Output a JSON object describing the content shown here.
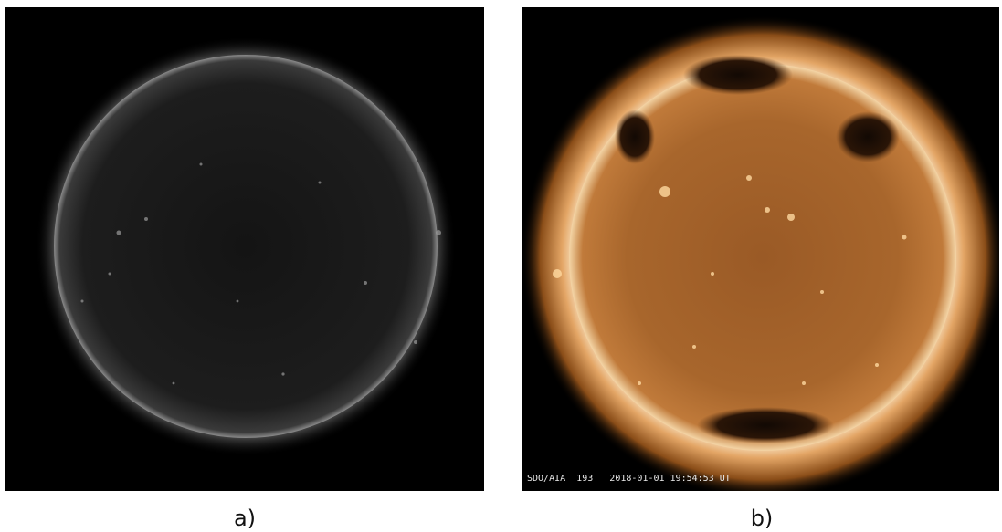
{
  "panels": [
    {
      "label": "a)"
    },
    {
      "label": "b)",
      "caption": "SDO/AIA  193   2018-01-01 19:54:53 UT"
    }
  ]
}
